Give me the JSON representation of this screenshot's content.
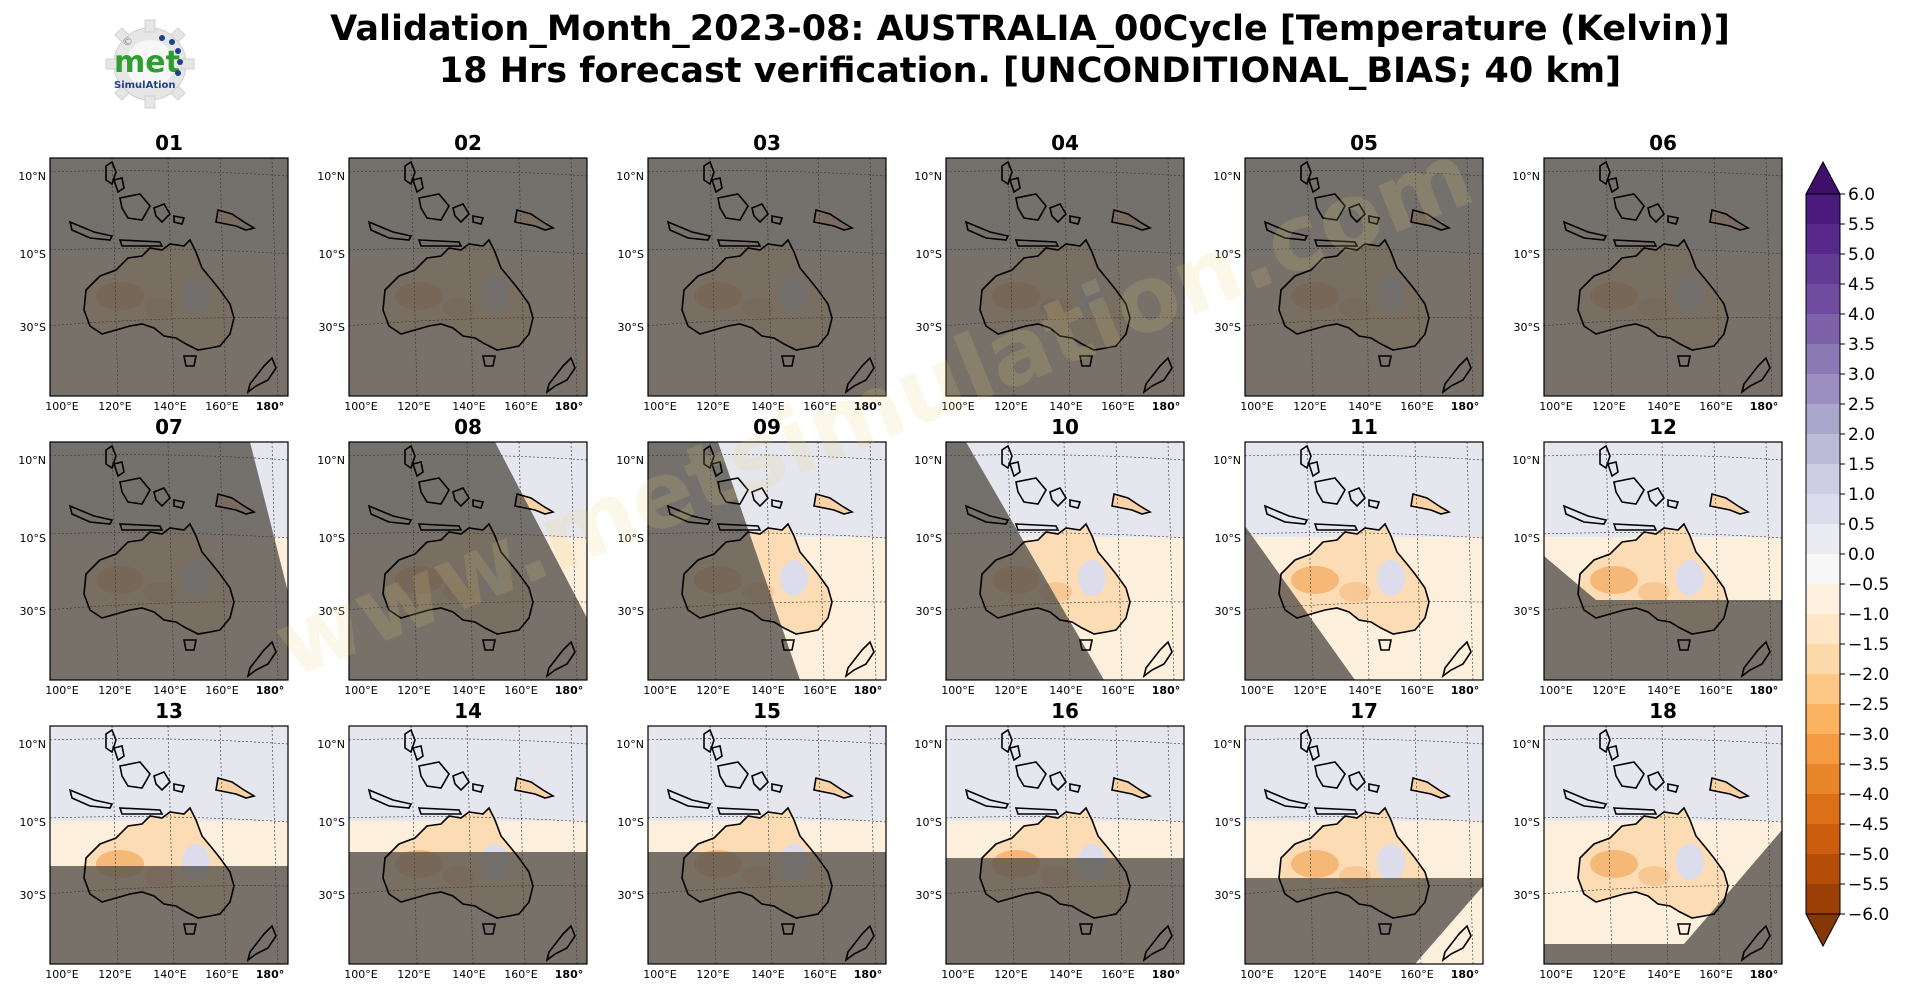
{
  "logo": {
    "text": "met",
    "subtext": "SimulAtion",
    "symbol": "©"
  },
  "title": {
    "line1": "Validation_Month_2023-08: AUSTRALIA_00Cycle [Temperature (Kelvin)]",
    "line2": "18 Hrs forecast verification. [UNCONDITIONAL_BIAS; 40 km]"
  },
  "map": {
    "lat_labels": [
      "10°N",
      "10°S",
      "30°S"
    ],
    "lon_labels": [
      "100°E",
      "120°E",
      "140°E",
      "160°E",
      "180°"
    ],
    "panels": [
      {
        "label": "01",
        "valid_fraction": 0.0
      },
      {
        "label": "02",
        "valid_fraction": 0.0
      },
      {
        "label": "03",
        "valid_fraction": 0.0
      },
      {
        "label": "04",
        "valid_fraction": 0.0
      },
      {
        "label": "05",
        "valid_fraction": 0.0
      },
      {
        "label": "06",
        "valid_fraction": 0.0
      },
      {
        "label": "07",
        "valid_fraction": 0.05
      },
      {
        "label": "08",
        "valid_fraction": 0.25
      },
      {
        "label": "09",
        "valid_fraction": 0.45
      },
      {
        "label": "10",
        "valid_fraction": 0.6
      },
      {
        "label": "11",
        "valid_fraction": 0.7
      },
      {
        "label": "12",
        "valid_fraction": 0.8
      },
      {
        "label": "13",
        "valid_fraction": 0.72
      },
      {
        "label": "14",
        "valid_fraction": 0.7
      },
      {
        "label": "15",
        "valid_fraction": 0.7
      },
      {
        "label": "16",
        "valid_fraction": 0.7
      },
      {
        "label": "17",
        "valid_fraction": 0.8
      },
      {
        "label": "18",
        "valid_fraction": 0.85
      }
    ]
  },
  "colorbar": {
    "ticks": [
      "6.0",
      "5.5",
      "5.0",
      "4.5",
      "4.0",
      "3.5",
      "3.0",
      "2.5",
      "2.0",
      "1.5",
      "1.0",
      "0.5",
      "0.0",
      "−0.5",
      "−1.0",
      "−1.5",
      "−2.0",
      "−2.5",
      "−3.0",
      "−3.5",
      "−4.0",
      "−4.5",
      "−5.0",
      "−5.5",
      "−6.0"
    ],
    "colors": [
      "#3f0f6b",
      "#4a1a7c",
      "#57298a",
      "#633a94",
      "#6f4c9f",
      "#7d62a9",
      "#8b79b5",
      "#9a8fc0",
      "#aba6cc",
      "#bcbad7",
      "#cdcde3",
      "#dcdced",
      "#ebebf3",
      "#f7f7f7",
      "#fff1df",
      "#fee6c6",
      "#fdd9a9",
      "#fdc785",
      "#fbb261",
      "#f59c42",
      "#ea862a",
      "#dc7018",
      "#cb5d0c",
      "#b54c07",
      "#9c3f06",
      "#843806"
    ]
  },
  "watermark": "www.metsimulation.com"
}
